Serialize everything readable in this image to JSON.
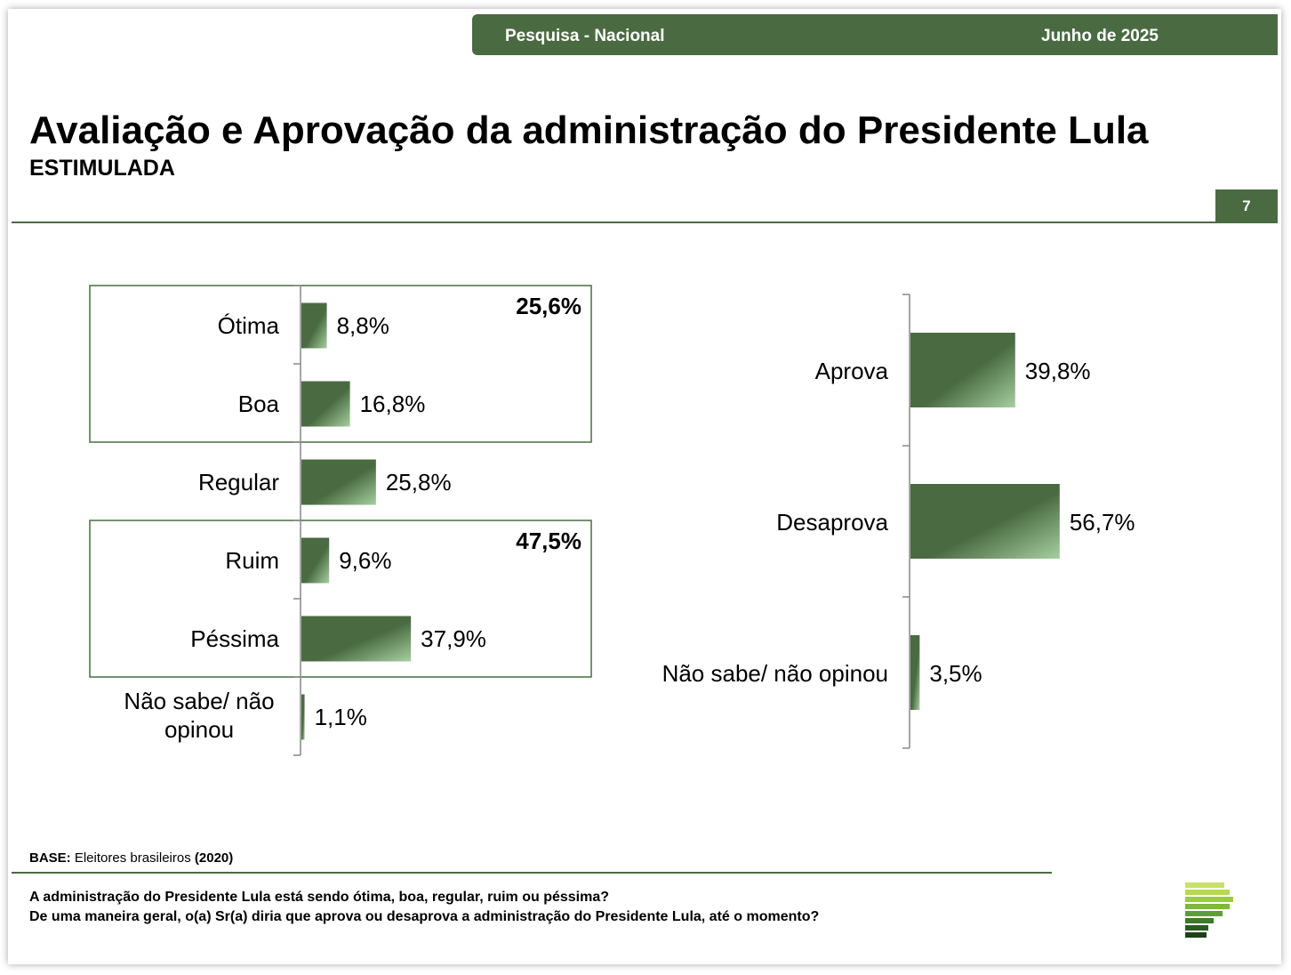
{
  "header": {
    "survey": "Pesquisa - Nacional",
    "date": "Junho de 2025"
  },
  "title": "Avaliação e Aprovação da administração do Presidente Lula",
  "subtitle": "ESTIMULADA",
  "page_number": "7",
  "colors": {
    "accent": "#4a6b42",
    "bar_dark": "#4a6b42",
    "bar_light": "#9fc79a"
  },
  "chart_data": [
    {
      "type": "bar",
      "orientation": "horizontal",
      "categories": [
        "Ótima",
        "Boa",
        "Regular",
        "Ruim",
        "Péssima",
        "Não sabe/ não opinou"
      ],
      "values": [
        8.8,
        16.8,
        25.8,
        9.6,
        37.9,
        1.1
      ],
      "value_labels": [
        "8,8%",
        "16,8%",
        "25,8%",
        "9,6%",
        "37,9%",
        "1,1%"
      ],
      "groups": [
        {
          "categories": [
            "Ótima",
            "Boa"
          ],
          "total_label": "25,6%"
        },
        {
          "categories": [
            "Ruim",
            "Péssima"
          ],
          "total_label": "47,5%"
        }
      ],
      "xlim": [
        0,
        100
      ]
    },
    {
      "type": "bar",
      "orientation": "horizontal",
      "categories": [
        "Aprova",
        "Desaprova",
        "Não sabe/ não opinou"
      ],
      "values": [
        39.8,
        56.7,
        3.5
      ],
      "value_labels": [
        "39,8%",
        "56,7%",
        "3,5%"
      ],
      "xlim": [
        0,
        100
      ]
    }
  ],
  "footer": {
    "base_label": "BASE:",
    "base_text": "Eleitores brasileiros",
    "base_n": "(2020)",
    "questions": [
      "A administração do Presidente Lula está sendo ótima, boa, regular, ruim ou péssima?",
      "De uma maneira geral, o(a) Sr(a) diria que aprova ou desaprova a administração do Presidente Lula, até o momento?"
    ]
  }
}
